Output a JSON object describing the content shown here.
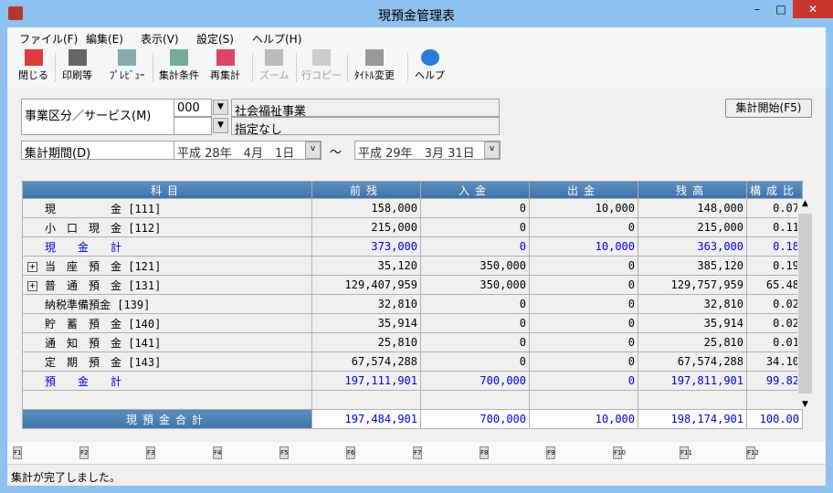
{
  "window": {
    "title": "現預金管理表",
    "minimize": "–",
    "maximize": "□",
    "close": "✕"
  },
  "menu": [
    "ファイル(F)",
    "編集(E)",
    "表示(V)",
    "設定(S)",
    "ヘルプ(H)"
  ],
  "toolbar": [
    {
      "label": "閉じる",
      "icon": "close-icon",
      "enabled": true
    },
    {
      "label": "印刷等",
      "icon": "printer-icon",
      "enabled": true
    },
    {
      "label": "ﾌﾟﾚﾋﾞｭｰ",
      "icon": "preview-icon",
      "enabled": true
    },
    {
      "label": "集計条件",
      "icon": "conditions-icon",
      "enabled": true
    },
    {
      "label": "再集計",
      "icon": "recalc-icon",
      "enabled": true
    },
    {
      "label": "ズーム",
      "icon": "zoom-icon",
      "enabled": false
    },
    {
      "label": "行コピー",
      "icon": "row-copy-icon",
      "enabled": false
    },
    {
      "label": "ﾀｲﾄﾙ変更",
      "icon": "title-change-icon",
      "enabled": true
    },
    {
      "label": "ヘルプ",
      "icon": "help-icon",
      "enabled": true
    }
  ],
  "filters": {
    "division_label": "事業区分／サービス(M)",
    "division_code": "000",
    "division_name": "社会福祉事業",
    "service_code": "",
    "service_name": "指定なし",
    "period_label": "集計期間(D)",
    "period_from": "平成 28年　4月　1日",
    "tilde": "～",
    "period_to": "平成 29年　3月 31日",
    "start_button": "集計開始(F5)"
  },
  "table": {
    "headers": [
      "科目",
      "前残",
      "入金",
      "出金",
      "残高",
      "構成比"
    ],
    "rows": [
      {
        "name": "現　　　　　金 [111]",
        "expand": false,
        "blue": false,
        "v": [
          "158,000",
          "0",
          "10,000",
          "148,000",
          "0.07"
        ]
      },
      {
        "name": "小　口　現　金 [112]",
        "expand": false,
        "blue": false,
        "v": [
          "215,000",
          "0",
          "0",
          "215,000",
          "0.11"
        ]
      },
      {
        "name": "現　　金　　計",
        "expand": false,
        "blue": true,
        "v": [
          "373,000",
          "0",
          "10,000",
          "363,000",
          "0.18"
        ]
      },
      {
        "name": "当　座　預　金 [121]",
        "expand": true,
        "blue": false,
        "v": [
          "35,120",
          "350,000",
          "0",
          "385,120",
          "0.19"
        ]
      },
      {
        "name": "普　通　預　金 [131]",
        "expand": true,
        "blue": false,
        "v": [
          "129,407,959",
          "350,000",
          "0",
          "129,757,959",
          "65.48"
        ]
      },
      {
        "name": "納税準備預金 [139]",
        "expand": false,
        "blue": false,
        "v": [
          "32,810",
          "0",
          "0",
          "32,810",
          "0.02"
        ]
      },
      {
        "name": "貯　蓄　預　金 [140]",
        "expand": false,
        "blue": false,
        "v": [
          "35,914",
          "0",
          "0",
          "35,914",
          "0.02"
        ]
      },
      {
        "name": "通　知　預　金 [141]",
        "expand": false,
        "blue": false,
        "v": [
          "25,810",
          "0",
          "0",
          "25,810",
          "0.01"
        ]
      },
      {
        "name": "定　期　預　金 [143]",
        "expand": false,
        "blue": false,
        "v": [
          "67,574,288",
          "0",
          "0",
          "67,574,288",
          "34.10"
        ]
      },
      {
        "name": "預　　金　　計",
        "expand": false,
        "blue": true,
        "v": [
          "197,111,901",
          "700,000",
          "0",
          "197,811,901",
          "99.82"
        ]
      },
      {
        "name": "",
        "expand": false,
        "blue": false,
        "v": [
          "",
          "",
          "",
          "",
          ""
        ]
      }
    ],
    "total": {
      "name": "現預金合計",
      "v": [
        "197,484,901",
        "700,000",
        "10,000",
        "198,174,901",
        "100.00"
      ]
    }
  },
  "fkeys": [
    "F1",
    "F2",
    "F3",
    "F4",
    "F5",
    "F6",
    "F7",
    "F8",
    "F9",
    "F10",
    "F11",
    "F12"
  ],
  "status": "集計が完了しました。"
}
